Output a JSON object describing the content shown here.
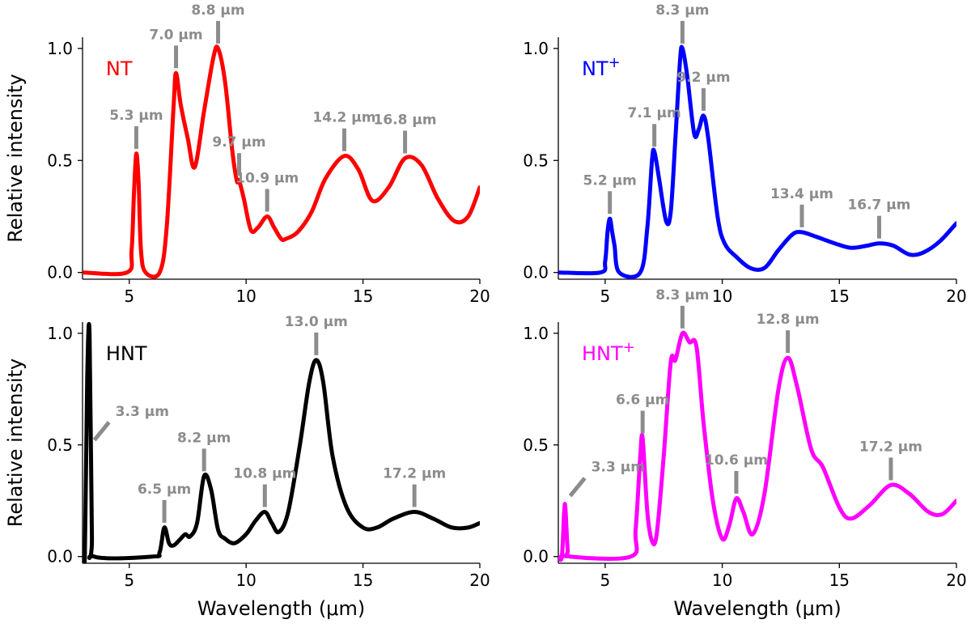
{
  "chart_data": [
    {
      "type": "line",
      "title": "NT",
      "title_superscript": "",
      "color": "#ff0000",
      "xlabel": "",
      "ylabel": "Relative intensity",
      "xlim": [
        3,
        20
      ],
      "ylim": [
        -0.03,
        1.05
      ],
      "xticks": [
        5,
        10,
        15,
        20
      ],
      "yticks": [
        0.0,
        0.5,
        1.0
      ],
      "xtick_labels": [
        "5",
        "10",
        "15",
        "20"
      ],
      "ytick_labels": [
        "0.0",
        "0.5",
        "1.0"
      ],
      "x": [
        3.0,
        4.9,
        5.1,
        5.2,
        5.3,
        5.4,
        5.5,
        5.7,
        6.3,
        6.6,
        6.9,
        7.0,
        7.2,
        7.5,
        7.8,
        8.2,
        8.6,
        8.8,
        9.1,
        9.4,
        9.6,
        9.7,
        9.9,
        10.2,
        10.5,
        10.9,
        11.2,
        11.5,
        11.7,
        12.2,
        12.8,
        13.4,
        14.2,
        14.8,
        15.4,
        16.1,
        16.8,
        17.5,
        18.2,
        18.9,
        19.5,
        20.0
      ],
      "y": [
        0.0,
        0.0,
        0.1,
        0.35,
        0.53,
        0.4,
        0.1,
        0.0,
        0.0,
        0.2,
        0.75,
        0.89,
        0.75,
        0.6,
        0.47,
        0.72,
        0.96,
        1.0,
        0.85,
        0.55,
        0.41,
        0.41,
        0.33,
        0.19,
        0.2,
        0.25,
        0.2,
        0.15,
        0.15,
        0.18,
        0.27,
        0.42,
        0.52,
        0.46,
        0.32,
        0.38,
        0.51,
        0.48,
        0.33,
        0.23,
        0.25,
        0.38
      ],
      "peaks": [
        {
          "label": "5.3 µm",
          "x": 5.3,
          "y": 0.53
        },
        {
          "label": "7.0 µm",
          "x": 7.0,
          "y": 0.89
        },
        {
          "label": "8.8 µm",
          "x": 8.8,
          "y": 1.0
        },
        {
          "label": "9.7 µm",
          "x": 9.7,
          "y": 0.41
        },
        {
          "label": "10.9 µm",
          "x": 10.9,
          "y": 0.25
        },
        {
          "label": "14.2 µm",
          "x": 14.2,
          "y": 0.52
        },
        {
          "label": "16.8 µm",
          "x": 16.8,
          "y": 0.51
        }
      ]
    },
    {
      "type": "line",
      "title": "NT",
      "title_superscript": "+",
      "color": "#0000ff",
      "xlabel": "",
      "ylabel": "",
      "xlim": [
        3,
        20
      ],
      "ylim": [
        -0.03,
        1.05
      ],
      "xticks": [
        5,
        10,
        15,
        20
      ],
      "yticks": [
        0.0,
        0.5,
        1.0
      ],
      "xtick_labels": [
        "5",
        "10",
        "15",
        "20"
      ],
      "ytick_labels": [
        "0.0",
        "0.5",
        "1.0"
      ],
      "x": [
        3.0,
        4.8,
        5.0,
        5.1,
        5.2,
        5.3,
        5.4,
        5.6,
        6.5,
        6.8,
        7.0,
        7.1,
        7.3,
        7.6,
        7.8,
        8.0,
        8.2,
        8.3,
        8.5,
        8.8,
        9.0,
        9.2,
        9.4,
        9.8,
        10.1,
        10.6,
        11.2,
        11.8,
        12.4,
        13.0,
        13.4,
        14.0,
        14.8,
        15.5,
        16.2,
        16.7,
        17.3,
        18.0,
        18.6,
        19.3,
        20.0
      ],
      "y": [
        0.0,
        0.0,
        0.05,
        0.18,
        0.24,
        0.18,
        0.12,
        0.0,
        0.0,
        0.2,
        0.5,
        0.54,
        0.42,
        0.23,
        0.27,
        0.6,
        0.95,
        1.0,
        0.88,
        0.62,
        0.64,
        0.7,
        0.6,
        0.25,
        0.13,
        0.07,
        0.02,
        0.02,
        0.1,
        0.17,
        0.18,
        0.16,
        0.13,
        0.11,
        0.12,
        0.13,
        0.12,
        0.08,
        0.09,
        0.14,
        0.22
      ],
      "peaks": [
        {
          "label": "5.2 µm",
          "x": 5.2,
          "y": 0.24
        },
        {
          "label": "7.1 µm",
          "x": 7.1,
          "y": 0.54
        },
        {
          "label": "8.3 µm",
          "x": 8.3,
          "y": 1.0
        },
        {
          "label": "9.2 µm",
          "x": 9.2,
          "y": 0.7
        },
        {
          "label": "13.4 µm",
          "x": 13.4,
          "y": 0.18
        },
        {
          "label": "16.7 µm",
          "x": 16.7,
          "y": 0.13
        }
      ]
    },
    {
      "type": "line",
      "title": "HNT",
      "title_superscript": "",
      "color": "#000000",
      "xlabel": "Wavelength (μm)",
      "ylabel": "Relative intensity",
      "xlim": [
        3,
        20
      ],
      "ylim": [
        -0.03,
        1.05
      ],
      "xticks": [
        5,
        10,
        15,
        20
      ],
      "yticks": [
        0.0,
        0.5,
        1.0
      ],
      "xtick_labels": [
        "5",
        "10",
        "15",
        "20"
      ],
      "ytick_labels": [
        "0.0",
        "0.5",
        "1.0"
      ],
      "x": [
        3.0,
        3.1,
        3.2,
        3.3,
        3.4,
        3.5,
        6.0,
        6.3,
        6.5,
        6.7,
        6.9,
        7.2,
        7.4,
        7.6,
        7.9,
        8.2,
        8.5,
        8.8,
        9.1,
        9.5,
        10.0,
        10.4,
        10.8,
        11.1,
        11.4,
        11.8,
        12.3,
        12.7,
        13.0,
        13.3,
        13.7,
        14.3,
        15.0,
        15.6,
        16.3,
        17.2,
        18.0,
        18.8,
        19.5,
        20.0
      ],
      "y": [
        0.0,
        0.01,
        0.8,
        1.0,
        0.1,
        0.0,
        0.0,
        0.02,
        0.13,
        0.06,
        0.05,
        0.08,
        0.1,
        0.09,
        0.15,
        0.36,
        0.3,
        0.12,
        0.08,
        0.06,
        0.1,
        0.16,
        0.2,
        0.15,
        0.11,
        0.2,
        0.5,
        0.78,
        0.88,
        0.78,
        0.45,
        0.22,
        0.13,
        0.13,
        0.17,
        0.2,
        0.17,
        0.13,
        0.13,
        0.15
      ],
      "peaks": [
        {
          "label": "3.3 µm",
          "x": 3.3,
          "y": 0.5,
          "angled": true
        },
        {
          "label": "6.5 µm",
          "x": 6.5,
          "y": 0.13
        },
        {
          "label": "8.2 µm",
          "x": 8.2,
          "y": 0.36
        },
        {
          "label": "10.8 µm",
          "x": 10.8,
          "y": 0.2
        },
        {
          "label": "13.0 µm",
          "x": 13.0,
          "y": 0.88
        },
        {
          "label": "17.2 µm",
          "x": 17.2,
          "y": 0.2
        }
      ]
    },
    {
      "type": "line",
      "title": "HNT",
      "title_superscript": "+",
      "color": "#ff00ff",
      "xlabel": "Wavelength (μm)",
      "ylabel": "",
      "xlim": [
        3,
        20
      ],
      "ylim": [
        -0.03,
        1.05
      ],
      "xticks": [
        5,
        10,
        15,
        20
      ],
      "yticks": [
        0.0,
        0.5,
        1.0
      ],
      "xtick_labels": [
        "5",
        "10",
        "15",
        "20"
      ],
      "ytick_labels": [
        "0.0",
        "0.5",
        "1.0"
      ],
      "x": [
        3.0,
        3.15,
        3.25,
        3.3,
        3.4,
        3.5,
        6.1,
        6.3,
        6.5,
        6.6,
        6.8,
        7.0,
        7.2,
        7.5,
        7.8,
        8.0,
        8.3,
        8.6,
        8.9,
        9.2,
        9.6,
        10.0,
        10.3,
        10.6,
        10.9,
        11.3,
        11.8,
        12.4,
        12.8,
        13.2,
        13.8,
        14.3,
        15.0,
        15.5,
        16.3,
        17.2,
        18.0,
        18.8,
        19.4,
        20.0
      ],
      "y": [
        0.0,
        0.0,
        0.2,
        0.22,
        0.03,
        0.0,
        0.0,
        0.12,
        0.45,
        0.53,
        0.2,
        0.07,
        0.1,
        0.45,
        0.87,
        0.88,
        1.0,
        0.96,
        0.94,
        0.6,
        0.25,
        0.08,
        0.14,
        0.26,
        0.2,
        0.1,
        0.28,
        0.75,
        0.89,
        0.76,
        0.48,
        0.4,
        0.22,
        0.17,
        0.23,
        0.32,
        0.28,
        0.2,
        0.19,
        0.25
      ],
      "peaks": [
        {
          "label": "3.3 µm",
          "x": 3.3,
          "y": 0.25,
          "angled": true
        },
        {
          "label": "6.6 µm",
          "x": 6.6,
          "y": 0.53
        },
        {
          "label": "8.3 µm",
          "x": 8.3,
          "y": 1.0
        },
        {
          "label": "10.6 µm",
          "x": 10.6,
          "y": 0.26
        },
        {
          "label": "12.8 µm",
          "x": 12.8,
          "y": 0.89
        },
        {
          "label": "17.2 µm",
          "x": 17.2,
          "y": 0.32
        }
      ]
    }
  ]
}
